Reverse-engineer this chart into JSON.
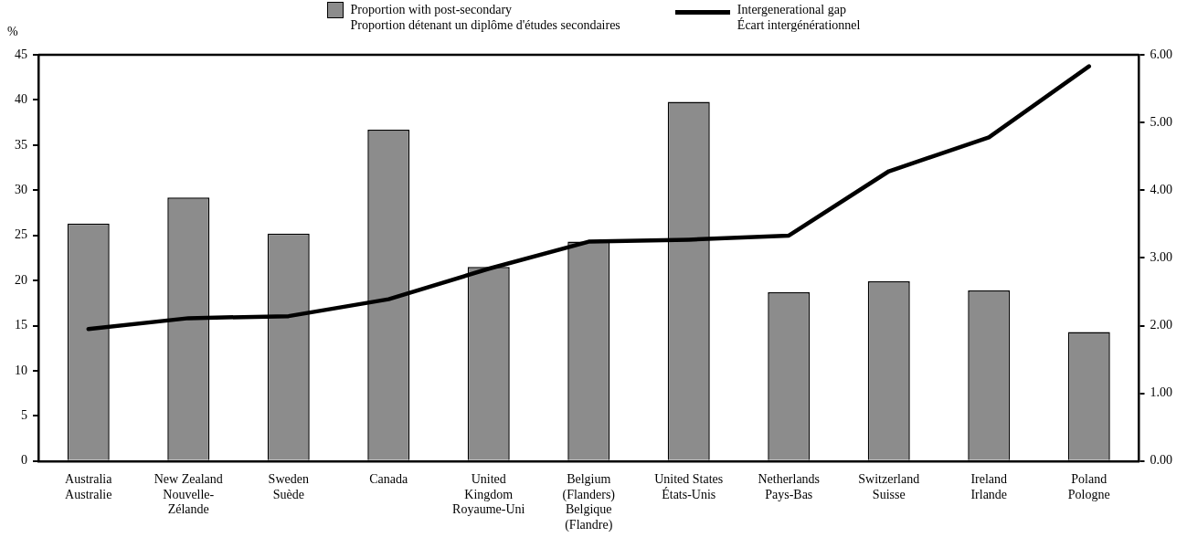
{
  "chart_data": {
    "type": "bar",
    "ylabel": "%",
    "categories": [
      "Australia\nAustralie",
      "New Zealand\nNouvelle-\nZélande",
      "Sweden\nSuède",
      "Canada",
      "United\nKingdom\nRoyaume-Uni",
      "Belgium\n(Flanders)\nBelgique\n(Flandre)",
      "United States\nÉtats-Unis",
      "Netherlands\nPays-Bas",
      "Switzerland\nSuisse",
      "Ireland\nIrlande",
      "Poland\nPologne"
    ],
    "series": [
      {
        "name": "Proportion with post-secondary\nProportion détenant un diplôme d'études secondaires",
        "color": "#8c8c8c",
        "values": [
          26.3,
          29.2,
          25.2,
          36.7,
          21.5,
          24.3,
          39.8,
          18.7,
          19.9,
          18.9,
          14.3
        ]
      },
      {
        "name": "Intergenerational gap\nÉcart intergénérationnel",
        "type": "line",
        "axis": "y2",
        "color": "#000000",
        "values": [
          1.95,
          2.11,
          2.14,
          2.39,
          2.84,
          3.24,
          3.27,
          3.33,
          4.28,
          4.78,
          5.83
        ]
      }
    ],
    "ylim": [
      0,
      45
    ],
    "yticks": [
      0,
      5,
      10,
      15,
      20,
      25,
      30,
      35,
      40,
      45
    ],
    "y2lim": [
      0,
      6
    ],
    "y2ticks": [
      {
        "value": 0,
        "label": "0.00"
      },
      {
        "value": 1,
        "label": "1.00"
      },
      {
        "value": 2,
        "label": "2.00"
      },
      {
        "value": 3,
        "label": "3.00"
      },
      {
        "value": 4,
        "label": "4.00"
      },
      {
        "value": 5,
        "label": "5.00"
      },
      {
        "value": 6,
        "label": "6.00"
      }
    ],
    "grid": false,
    "legend": "top",
    "marker": "none",
    "line_style": "solid"
  }
}
